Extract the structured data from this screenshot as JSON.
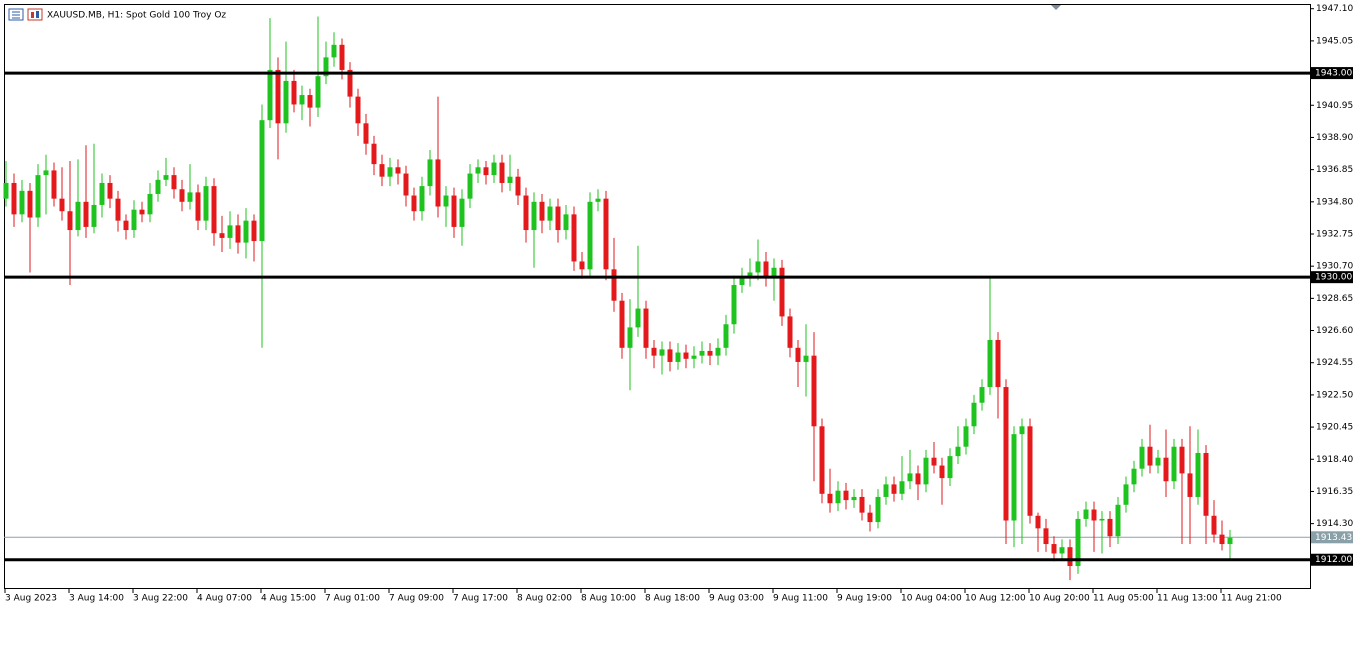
{
  "chart_data": {
    "type": "candlestick",
    "title": "XAUUSD.MB, H1:  Spot Gold 100 Troy Oz",
    "up_color": "#1fc31f",
    "down_color": "#e3191c",
    "ylim": [
      1910.2,
      1947.4
    ],
    "yticks": [
      {
        "value": 1947.1,
        "label": "1947.10"
      },
      1945.05,
      1940.95,
      {
        "value": 1938.9,
        "label": "1938.90"
      },
      1936.85,
      {
        "value": 1934.8,
        "label": "1934.80"
      },
      1932.75,
      {
        "value": 1930.7,
        "label": "1930.70"
      },
      1928.65,
      {
        "value": 1926.6,
        "label": "1926.60"
      },
      1924.55,
      {
        "value": 1922.5,
        "label": "1922.50"
      },
      1920.45,
      {
        "value": 1918.4,
        "label": "1918.40"
      },
      1916.35,
      {
        "value": 1914.3,
        "label": "1914.30"
      }
    ],
    "levels": [
      {
        "value": 1943,
        "label": "1943.00"
      },
      {
        "value": 1930,
        "label": "1930.00"
      },
      {
        "value": 1912,
        "label": "1912.00"
      }
    ],
    "price_line": {
      "value": 1913.43,
      "label": "1913.43"
    },
    "categories": [
      "3 Aug 2023",
      null,
      null,
      null,
      null,
      null,
      null,
      null,
      "3 Aug 14:00",
      null,
      null,
      null,
      null,
      null,
      null,
      null,
      "3 Aug 22:00",
      null,
      null,
      null,
      null,
      null,
      null,
      null,
      "4 Aug 07:00",
      null,
      null,
      null,
      null,
      null,
      null,
      null,
      "4 Aug 15:00",
      null,
      null,
      null,
      null,
      null,
      null,
      null,
      "7 Aug 01:00",
      null,
      null,
      null,
      null,
      null,
      null,
      null,
      "7 Aug 09:00",
      null,
      null,
      null,
      null,
      null,
      null,
      null,
      "7 Aug 17:00",
      null,
      null,
      null,
      null,
      null,
      null,
      null,
      "8 Aug 02:00",
      null,
      null,
      null,
      null,
      null,
      null,
      null,
      "8 Aug 10:00",
      null,
      null,
      null,
      null,
      null,
      null,
      null,
      "8 Aug 18:00",
      null,
      null,
      null,
      null,
      null,
      null,
      null,
      "9 Aug 03:00",
      null,
      null,
      null,
      null,
      null,
      null,
      null,
      "9 Aug 11:00",
      null,
      null,
      null,
      null,
      null,
      null,
      null,
      "9 Aug 19:00",
      null,
      null,
      null,
      null,
      null,
      null,
      null,
      "10 Aug 04:00",
      null,
      null,
      null,
      null,
      null,
      null,
      null,
      "10 Aug 12:00",
      null,
      null,
      null,
      null,
      null,
      null,
      null,
      "10 Aug 20:00",
      null,
      null,
      null,
      null,
      null,
      null,
      null,
      "11 Aug 05:00",
      null,
      null,
      null,
      null,
      null,
      null,
      null,
      "11 Aug 13:00",
      null,
      null,
      null,
      null,
      null,
      null,
      null,
      "11 Aug 21:00",
      null
    ],
    "candles": [
      [
        1935.0,
        1937.4,
        1934.5,
        1936.0
      ],
      [
        1936.0,
        1936.6,
        1933.2,
        1934.0
      ],
      [
        1934.0,
        1936.2,
        1933.5,
        1935.5
      ],
      [
        1935.5,
        1936.0,
        1930.3,
        1933.8
      ],
      [
        1933.8,
        1937.2,
        1933.2,
        1936.5
      ],
      [
        1936.5,
        1937.8,
        1934.0,
        1936.8
      ],
      [
        1936.8,
        1937.3,
        1934.5,
        1935.0
      ],
      [
        1935.0,
        1937.0,
        1933.6,
        1934.2
      ],
      [
        1934.2,
        1937.4,
        1929.5,
        1933.0
      ],
      [
        1933.0,
        1937.5,
        1932.6,
        1934.8
      ],
      [
        1934.8,
        1938.4,
        1932.5,
        1933.2
      ],
      [
        1933.2,
        1938.5,
        1932.8,
        1934.6
      ],
      [
        1934.6,
        1936.6,
        1933.8,
        1936.0
      ],
      [
        1936.0,
        1936.5,
        1934.4,
        1935.0
      ],
      [
        1935.0,
        1935.5,
        1932.9,
        1933.6
      ],
      [
        1933.6,
        1934.0,
        1932.4,
        1933.0
      ],
      [
        1933.0,
        1934.9,
        1932.5,
        1934.3
      ],
      [
        1934.3,
        1934.8,
        1933.5,
        1934.0
      ],
      [
        1934.0,
        1936.0,
        1933.5,
        1935.3
      ],
      [
        1935.3,
        1936.8,
        1934.8,
        1936.2
      ],
      [
        1936.2,
        1937.6,
        1935.8,
        1936.5
      ],
      [
        1936.5,
        1937.0,
        1935.0,
        1935.6
      ],
      [
        1935.6,
        1936.2,
        1934.2,
        1934.8
      ],
      [
        1934.8,
        1937.2,
        1934.3,
        1935.4
      ],
      [
        1935.4,
        1935.9,
        1933.0,
        1933.6
      ],
      [
        1933.6,
        1936.4,
        1933.0,
        1935.8
      ],
      [
        1935.8,
        1936.3,
        1932.0,
        1932.8
      ],
      [
        1932.8,
        1933.9,
        1931.6,
        1932.5
      ],
      [
        1932.5,
        1934.2,
        1931.8,
        1933.3
      ],
      [
        1933.3,
        1934.0,
        1931.5,
        1932.2
      ],
      [
        1932.2,
        1934.4,
        1931.2,
        1933.6
      ],
      [
        1933.6,
        1934.0,
        1931.0,
        1932.3
      ],
      [
        1932.3,
        1941.0,
        1925.5,
        1940.0
      ],
      [
        1940.0,
        1946.5,
        1939.5,
        1943.2
      ],
      [
        1943.2,
        1944.0,
        1937.5,
        1939.8
      ],
      [
        1939.8,
        1945.0,
        1939.2,
        1942.5
      ],
      [
        1942.5,
        1943.2,
        1940.5,
        1941.0
      ],
      [
        1941.0,
        1942.2,
        1940.0,
        1941.6
      ],
      [
        1941.6,
        1942.0,
        1939.6,
        1940.8
      ],
      [
        1940.8,
        1946.6,
        1940.2,
        1942.8
      ],
      [
        1942.8,
        1945.0,
        1942.3,
        1944.0
      ],
      [
        1944.0,
        1945.6,
        1943.4,
        1944.8
      ],
      [
        1944.8,
        1945.2,
        1942.6,
        1943.2
      ],
      [
        1943.2,
        1943.7,
        1940.8,
        1941.5
      ],
      [
        1941.5,
        1942.0,
        1939.0,
        1939.8
      ],
      [
        1939.8,
        1940.4,
        1937.8,
        1938.5
      ],
      [
        1938.5,
        1939.0,
        1936.5,
        1937.2
      ],
      [
        1937.2,
        1937.8,
        1935.8,
        1936.4
      ],
      [
        1936.4,
        1937.6,
        1935.8,
        1937.0
      ],
      [
        1937.0,
        1937.5,
        1935.9,
        1936.6
      ],
      [
        1936.6,
        1937.1,
        1934.5,
        1935.2
      ],
      [
        1935.2,
        1935.7,
        1933.6,
        1934.2
      ],
      [
        1934.2,
        1936.4,
        1933.6,
        1935.8
      ],
      [
        1935.8,
        1938.1,
        1935.2,
        1937.5
      ],
      [
        1937.5,
        1941.5,
        1933.8,
        1934.5
      ],
      [
        1934.5,
        1935.8,
        1933.2,
        1935.2
      ],
      [
        1935.2,
        1935.7,
        1932.5,
        1933.2
      ],
      [
        1933.2,
        1935.6,
        1932.0,
        1935.0
      ],
      [
        1935.0,
        1937.2,
        1934.4,
        1936.6
      ],
      [
        1936.6,
        1937.5,
        1936.0,
        1937.0
      ],
      [
        1937.0,
        1937.4,
        1935.9,
        1936.5
      ],
      [
        1936.5,
        1937.8,
        1936.0,
        1937.3
      ],
      [
        1937.3,
        1937.8,
        1935.4,
        1936.0
      ],
      [
        1936.0,
        1937.8,
        1935.5,
        1936.4
      ],
      [
        1936.4,
        1936.9,
        1934.6,
        1935.2
      ],
      [
        1935.2,
        1935.7,
        1932.2,
        1933.0
      ],
      [
        1933.0,
        1935.4,
        1930.6,
        1934.8
      ],
      [
        1934.8,
        1935.3,
        1932.8,
        1933.6
      ],
      [
        1933.6,
        1935.0,
        1933.0,
        1934.5
      ],
      [
        1934.5,
        1935.0,
        1932.2,
        1933.0
      ],
      [
        1933.0,
        1934.6,
        1932.4,
        1934.0
      ],
      [
        1934.0,
        1934.5,
        1930.4,
        1931.0
      ],
      [
        1931.0,
        1931.6,
        1929.9,
        1930.5
      ],
      [
        1930.5,
        1935.4,
        1930.0,
        1934.8
      ],
      [
        1934.8,
        1935.6,
        1934.2,
        1935.0
      ],
      [
        1935.0,
        1935.5,
        1929.8,
        1930.5
      ],
      [
        1930.5,
        1932.5,
        1927.8,
        1928.5
      ],
      [
        1928.5,
        1929.0,
        1924.8,
        1925.5
      ],
      [
        1925.5,
        1928.6,
        1922.8,
        1926.8
      ],
      [
        1926.8,
        1932.0,
        1926.2,
        1928.0
      ],
      [
        1928.0,
        1928.5,
        1924.8,
        1925.5
      ],
      [
        1925.5,
        1926.0,
        1924.2,
        1925.0
      ],
      [
        1925.0,
        1925.9,
        1923.8,
        1925.4
      ],
      [
        1925.4,
        1925.9,
        1924.0,
        1924.6
      ],
      [
        1924.6,
        1925.8,
        1924.1,
        1925.2
      ],
      [
        1925.2,
        1925.7,
        1924.2,
        1924.8
      ],
      [
        1924.8,
        1925.6,
        1924.2,
        1925.0
      ],
      [
        1925.0,
        1925.9,
        1924.5,
        1925.3
      ],
      [
        1925.3,
        1925.8,
        1924.4,
        1925.0
      ],
      [
        1925.0,
        1926.1,
        1924.4,
        1925.5
      ],
      [
        1925.5,
        1927.6,
        1925.0,
        1927.0
      ],
      [
        1927.0,
        1930.1,
        1926.4,
        1929.5
      ],
      [
        1929.5,
        1930.6,
        1929.0,
        1930.0
      ],
      [
        1930.0,
        1931.2,
        1929.4,
        1930.3
      ],
      [
        1930.3,
        1932.4,
        1929.8,
        1931.0
      ],
      [
        1931.0,
        1931.6,
        1929.4,
        1930.0
      ],
      [
        1930.0,
        1931.2,
        1928.5,
        1930.6
      ],
      [
        1930.6,
        1931.1,
        1926.9,
        1927.5
      ],
      [
        1927.5,
        1928.0,
        1924.9,
        1925.5
      ],
      [
        1925.5,
        1926.0,
        1923.0,
        1924.6
      ],
      [
        1924.6,
        1927.0,
        1922.4,
        1925.0
      ],
      [
        1925.0,
        1926.5,
        1917.0,
        1920.5
      ],
      [
        1920.5,
        1921.0,
        1915.6,
        1916.2
      ],
      [
        1916.2,
        1917.8,
        1915.0,
        1915.6
      ],
      [
        1915.6,
        1917.0,
        1915.1,
        1916.4
      ],
      [
        1916.4,
        1916.9,
        1915.2,
        1915.8
      ],
      [
        1915.8,
        1916.5,
        1915.3,
        1916.0
      ],
      [
        1916.0,
        1916.5,
        1914.5,
        1915.0
      ],
      [
        1915.0,
        1915.5,
        1913.8,
        1914.4
      ],
      [
        1914.4,
        1916.5,
        1914.0,
        1916.0
      ],
      [
        1916.0,
        1917.3,
        1915.5,
        1916.8
      ],
      [
        1916.8,
        1917.3,
        1915.7,
        1916.2
      ],
      [
        1916.2,
        1918.6,
        1915.8,
        1917.0
      ],
      [
        1917.0,
        1919.0,
        1916.5,
        1917.5
      ],
      [
        1917.5,
        1918.0,
        1915.8,
        1916.8
      ],
      [
        1916.8,
        1919.0,
        1916.3,
        1918.5
      ],
      [
        1918.5,
        1919.5,
        1917.5,
        1918.0
      ],
      [
        1918.0,
        1918.5,
        1915.5,
        1917.2
      ],
      [
        1917.2,
        1919.1,
        1916.7,
        1918.6
      ],
      [
        1918.6,
        1920.5,
        1918.1,
        1919.2
      ],
      [
        1919.2,
        1921.0,
        1918.7,
        1920.5
      ],
      [
        1920.5,
        1922.5,
        1920.0,
        1922.0
      ],
      [
        1922.0,
        1923.5,
        1921.5,
        1923.0
      ],
      [
        1923.0,
        1930.0,
        1922.5,
        1926.0
      ],
      [
        1926.0,
        1926.5,
        1921.0,
        1923.0
      ],
      [
        1923.0,
        1923.5,
        1913.0,
        1914.5
      ],
      [
        1914.5,
        1920.5,
        1912.8,
        1920.0
      ],
      [
        1920.0,
        1921.0,
        1913.0,
        1920.5
      ],
      [
        1920.5,
        1921.0,
        1914.3,
        1914.8
      ],
      [
        1914.8,
        1915.0,
        1912.5,
        1914.0
      ],
      [
        1914.0,
        1914.6,
        1912.5,
        1913.0
      ],
      [
        1913.0,
        1913.5,
        1911.9,
        1912.4
      ],
      [
        1912.4,
        1913.3,
        1911.9,
        1912.8
      ],
      [
        1912.8,
        1913.3,
        1910.7,
        1911.6
      ],
      [
        1911.6,
        1915.1,
        1911.1,
        1914.6
      ],
      [
        1914.6,
        1915.7,
        1914.1,
        1915.2
      ],
      [
        1915.2,
        1915.7,
        1912.5,
        1914.5
      ],
      [
        1914.5,
        1915.1,
        1912.4,
        1914.6
      ],
      [
        1914.6,
        1915.1,
        1912.8,
        1913.5
      ],
      [
        1913.5,
        1916.0,
        1913.0,
        1915.5
      ],
      [
        1915.5,
        1917.3,
        1915.0,
        1916.8
      ],
      [
        1916.8,
        1918.3,
        1916.3,
        1917.8
      ],
      [
        1917.8,
        1919.7,
        1917.3,
        1919.2
      ],
      [
        1919.2,
        1920.6,
        1917.5,
        1918.0
      ],
      [
        1918.0,
        1919.0,
        1917.5,
        1918.5
      ],
      [
        1918.5,
        1920.3,
        1916.0,
        1917.0
      ],
      [
        1917.0,
        1919.7,
        1916.5,
        1919.2
      ],
      [
        1919.2,
        1919.7,
        1913.0,
        1917.5
      ],
      [
        1917.5,
        1920.5,
        1913.0,
        1916.0
      ],
      [
        1916.0,
        1920.3,
        1915.5,
        1918.8
      ],
      [
        1918.8,
        1919.3,
        1913.0,
        1914.8
      ],
      [
        1914.8,
        1915.8,
        1913.1,
        1913.6
      ],
      [
        1913.6,
        1914.5,
        1912.6,
        1913.0
      ],
      [
        1913.0,
        1913.9,
        1912.0,
        1913.4
      ]
    ]
  }
}
